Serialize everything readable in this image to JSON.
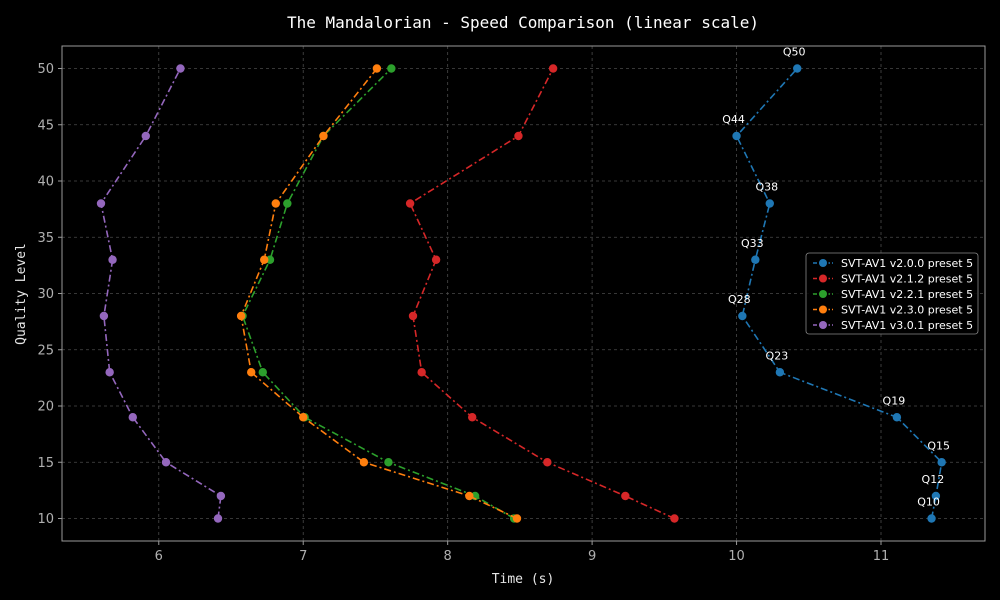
{
  "chart_data": {
    "type": "line",
    "title": "The Mandalorian - Speed Comparison (linear scale)",
    "xlabel": "Time (s)",
    "ylabel": "Quality Level",
    "xlim": [
      5.33,
      11.72
    ],
    "ylim": [
      8.0,
      52.0
    ],
    "xticks": [
      6,
      7,
      8,
      9,
      10,
      11
    ],
    "yticks": [
      10,
      15,
      20,
      25,
      30,
      35,
      40,
      45,
      50
    ],
    "grid": true,
    "legend_position": "center-right",
    "series": [
      {
        "name": "SVT-AV1 v2.0.0 preset 5",
        "color": "#1f77b4",
        "x": [
          11.35,
          11.38,
          11.42,
          11.11,
          10.3,
          10.04,
          10.13,
          10.23,
          10.0,
          10.42
        ],
        "y": [
          10,
          12,
          15,
          19,
          23,
          28,
          33,
          38,
          44,
          50
        ]
      },
      {
        "name": "SVT-AV1 v2.1.2 preset 5",
        "color": "#d62728",
        "x": [
          9.57,
          9.23,
          8.69,
          8.17,
          7.82,
          7.76,
          7.92,
          7.74,
          8.49,
          8.73
        ],
        "y": [
          10,
          12,
          15,
          19,
          23,
          28,
          33,
          38,
          44,
          50
        ]
      },
      {
        "name": "SVT-AV1 v2.2.1 preset 5",
        "color": "#2ca02c",
        "x": [
          8.46,
          8.19,
          7.59,
          7.01,
          6.72,
          6.58,
          6.77,
          6.89,
          7.14,
          7.61
        ],
        "y": [
          10,
          12,
          15,
          19,
          23,
          28,
          33,
          38,
          44,
          50
        ]
      },
      {
        "name": "SVT-AV1 v2.3.0 preset 5",
        "color": "#ff7f0e",
        "x": [
          8.48,
          8.15,
          7.42,
          7.0,
          6.64,
          6.57,
          6.73,
          6.81,
          7.14,
          7.51
        ],
        "y": [
          10,
          12,
          15,
          19,
          23,
          28,
          33,
          38,
          44,
          50
        ]
      },
      {
        "name": "SVT-AV1 v3.0.1 preset 5",
        "color": "#9467bd",
        "x": [
          6.41,
          6.43,
          6.05,
          5.82,
          5.66,
          5.62,
          5.68,
          5.6,
          5.91,
          6.15
        ],
        "y": [
          10,
          12,
          15,
          19,
          23,
          28,
          33,
          38,
          44,
          50
        ]
      }
    ],
    "annotations": {
      "series_index": 0,
      "labels": [
        "Q10",
        "Q12",
        "Q15",
        "Q19",
        "Q23",
        "Q28",
        "Q33",
        "Q38",
        "Q44",
        "Q50"
      ]
    }
  }
}
